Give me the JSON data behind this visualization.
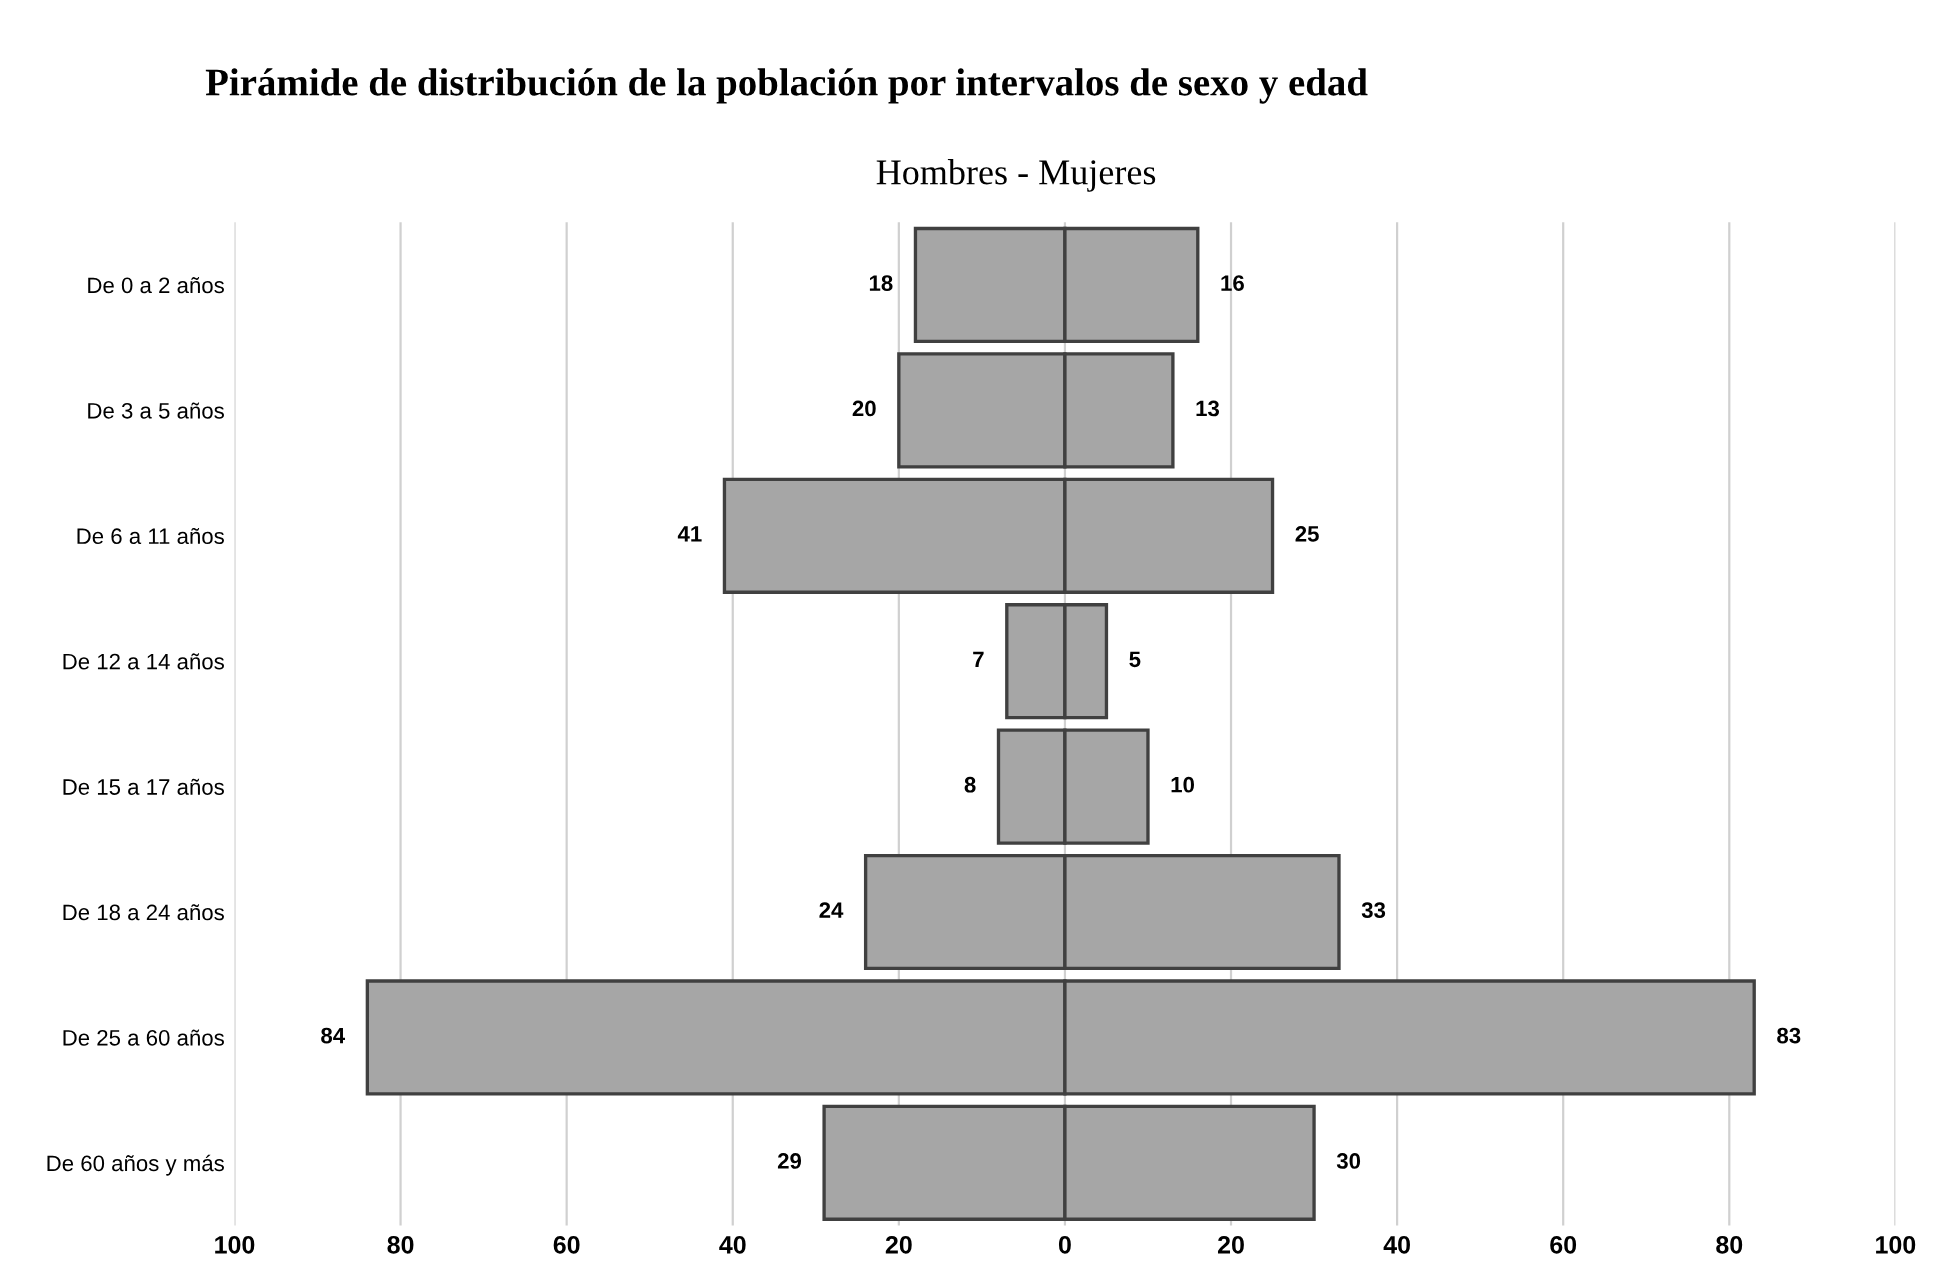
{
  "chart_data": {
    "type": "bar",
    "orientation": "horizontal",
    "title": "Pirámide de distribución de la población por intervalos de sexo y edad",
    "subtitle": "Hombres - Mujeres",
    "categories": [
      "De 0 a 2 años",
      "De 3 a 5 años",
      "De 6 a 11 años",
      "De 12 a 14 años",
      "De 15 a 17 años",
      "De 18 a 24 años",
      "De 25 a 60 años",
      "De 60 años y más"
    ],
    "series": [
      {
        "color": "#a6a6a6",
        "base": [
          -18,
          -20,
          -41,
          -7,
          -8,
          -24,
          -84,
          -29
        ],
        "values": [
          18,
          20,
          41,
          7,
          8,
          24,
          84,
          29
        ],
        "value_labels": [
          "18",
          "20",
          "41",
          "7",
          "8",
          "24",
          "84",
          "29"
        ]
      },
      {
        "color": "#a6a6a6",
        "values": [
          16,
          13,
          25,
          5,
          10,
          33,
          83,
          30
        ],
        "value_labels": [
          "16",
          "13",
          "25",
          "5",
          "10",
          "33",
          "83",
          "30"
        ]
      }
    ],
    "xlim": [
      -100,
      100
    ],
    "xticks": [
      {
        "value": -100,
        "label": "100"
      },
      {
        "value": -80,
        "label": "80"
      },
      {
        "value": -60,
        "label": "60"
      },
      {
        "value": -40,
        "label": "40"
      },
      {
        "value": -20,
        "label": "20"
      },
      0,
      20,
      40,
      60,
      80,
      100
    ],
    "grid": "x"
  }
}
